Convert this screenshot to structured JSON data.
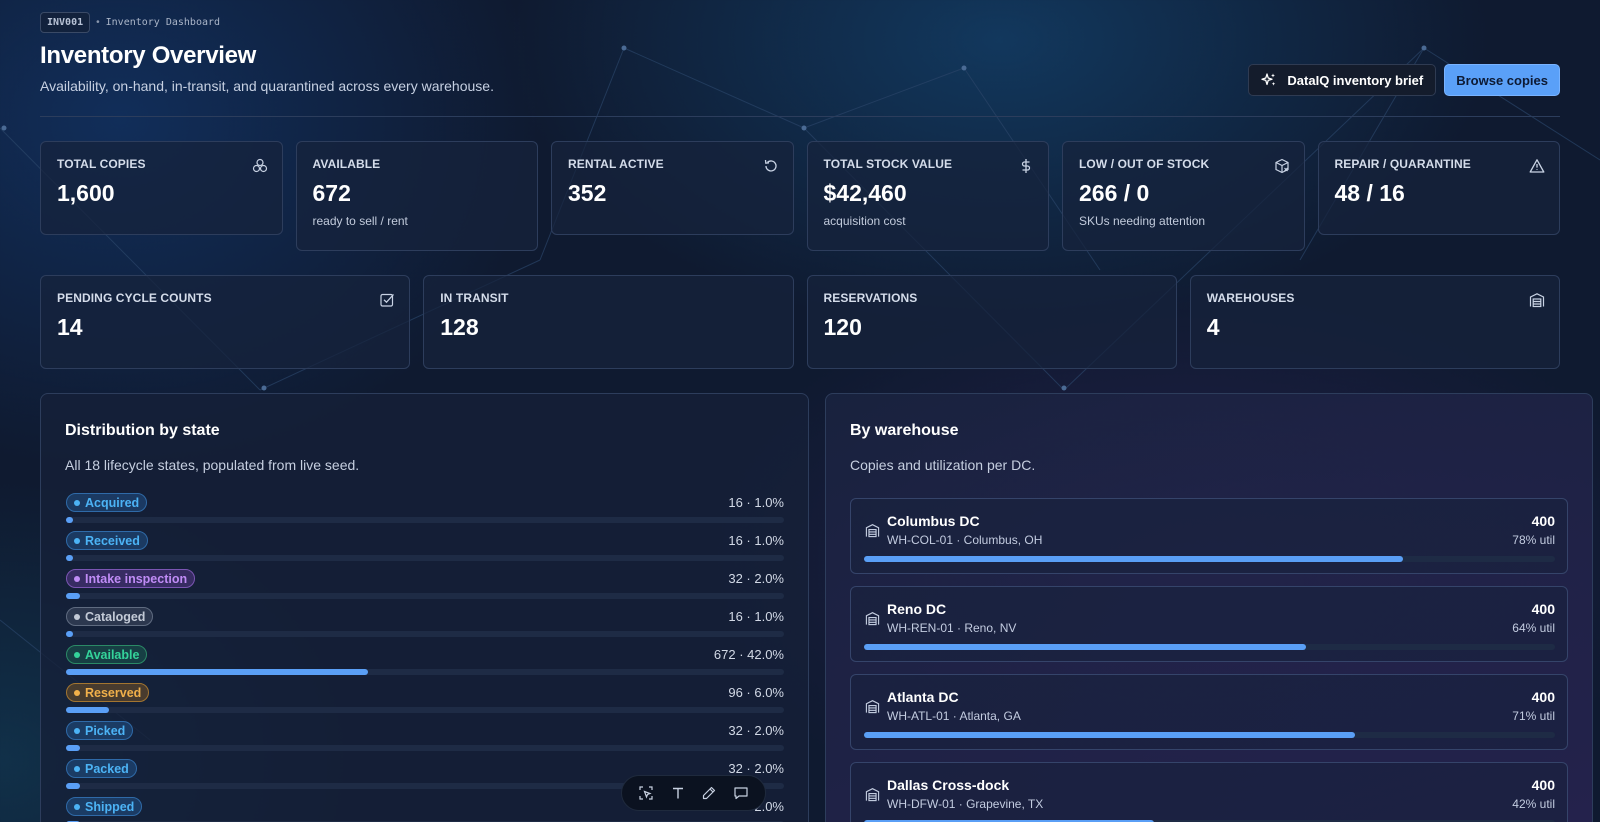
{
  "header": {
    "code": "INV001",
    "crumb_title": "Inventory Dashboard",
    "title": "Inventory Overview",
    "subtitle": "Availability, on-hand, in-transit, and quarantined across every warehouse.",
    "brief_button": "DataIQ inventory brief",
    "browse_button": "Browse copies"
  },
  "stats_row1": [
    {
      "label": "TOTAL COPIES",
      "value": "1,600",
      "note": "",
      "icon": "boxes-icon"
    },
    {
      "label": "AVAILABLE",
      "value": "672",
      "note": "ready to sell / rent",
      "icon": ""
    },
    {
      "label": "RENTAL ACTIVE",
      "value": "352",
      "note": "",
      "icon": "rotate-icon"
    },
    {
      "label": "TOTAL STOCK VALUE",
      "value": "$42,460",
      "note": "acquisition cost",
      "icon": "dollar-icon"
    },
    {
      "label": "LOW / OUT OF STOCK",
      "value": "266 / 0",
      "note": "SKUs needing attention",
      "icon": "package-x-icon"
    },
    {
      "label": "REPAIR / QUARANTINE",
      "value": "48 / 16",
      "note": "",
      "icon": "warning-icon"
    }
  ],
  "stats_row2": [
    {
      "label": "PENDING CYCLE COUNTS",
      "value": "14",
      "icon": "checkbox-icon"
    },
    {
      "label": "IN TRANSIT",
      "value": "128",
      "icon": ""
    },
    {
      "label": "RESERVATIONS",
      "value": "120",
      "icon": ""
    },
    {
      "label": "WAREHOUSES",
      "value": "4",
      "icon": "warehouse-icon"
    }
  ],
  "distribution": {
    "title": "Distribution by state",
    "subtitle": "All 18 lifecycle states, populated from live seed.",
    "states": [
      {
        "name": "Acquired",
        "value": "16 · 1.0%",
        "pct": 1.0,
        "color": "#4cb3f5",
        "bg": "rgba(40,110,180,0.35)",
        "border": "#2f6aa8"
      },
      {
        "name": "Received",
        "value": "16 · 1.0%",
        "pct": 1.0,
        "color": "#4cb3f5",
        "bg": "rgba(40,110,180,0.35)",
        "border": "#2f6aa8"
      },
      {
        "name": "Intake inspection",
        "value": "32 · 2.0%",
        "pct": 2.0,
        "color": "#c08cf6",
        "bg": "rgba(120,70,180,0.35)",
        "border": "#7b55b3"
      },
      {
        "name": "Cataloged",
        "value": "16 · 1.0%",
        "pct": 1.0,
        "color": "#c3cad6",
        "bg": "rgba(90,100,120,0.35)",
        "border": "#5f6b80"
      },
      {
        "name": "Available",
        "value": "672 · 42.0%",
        "pct": 42.0,
        "color": "#34d39a",
        "bg": "rgba(30,120,90,0.35)",
        "border": "#2b8a66"
      },
      {
        "name": "Reserved",
        "value": "96 · 6.0%",
        "pct": 6.0,
        "color": "#f1b04a",
        "bg": "rgba(150,100,30,0.40)",
        "border": "#a37530"
      },
      {
        "name": "Picked",
        "value": "32 · 2.0%",
        "pct": 2.0,
        "color": "#4cb3f5",
        "bg": "rgba(40,110,180,0.35)",
        "border": "#2f6aa8"
      },
      {
        "name": "Packed",
        "value": "32 · 2.0%",
        "pct": 2.0,
        "color": "#4cb3f5",
        "bg": "rgba(40,110,180,0.35)",
        "border": "#2f6aa8"
      },
      {
        "name": "Shipped",
        "value": "32 · 2.0%",
        "pct": 2.0,
        "color": "#4cb3f5",
        "bg": "rgba(40,110,180,0.35)",
        "border": "#2f6aa8"
      }
    ]
  },
  "warehouses": {
    "title": "By warehouse",
    "subtitle": "Copies and utilization per DC.",
    "items": [
      {
        "name": "Columbus DC",
        "meta": "WH-COL-01 · Columbus, OH",
        "count": "400",
        "util": "78% util",
        "util_pct": 78
      },
      {
        "name": "Reno DC",
        "meta": "WH-REN-01 · Reno, NV",
        "count": "400",
        "util": "64% util",
        "util_pct": 64
      },
      {
        "name": "Atlanta DC",
        "meta": "WH-ATL-01 · Atlanta, GA",
        "count": "400",
        "util": "71% util",
        "util_pct": 71
      },
      {
        "name": "Dallas Cross-dock",
        "meta": "WH-DFW-01 · Grapevine, TX",
        "count": "400",
        "util": "42% util",
        "util_pct": 42
      }
    ]
  },
  "toolbar": [
    "select-icon",
    "text-icon",
    "pen-icon",
    "comment-icon"
  ],
  "colors": {
    "accent": "#5aa0f8",
    "bar": "#5a9ff6"
  }
}
